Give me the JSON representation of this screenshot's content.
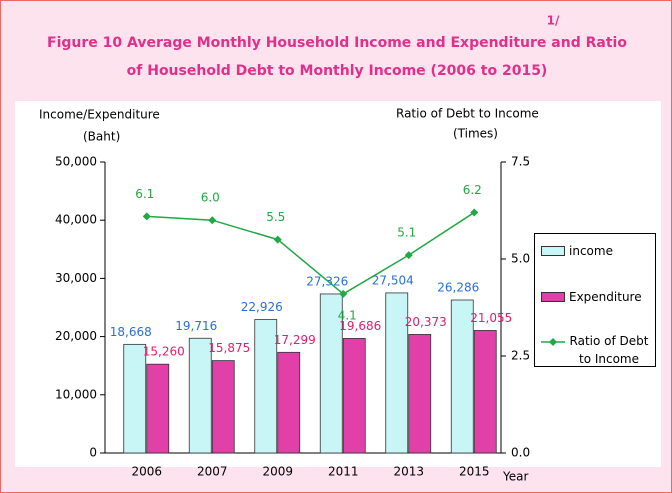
{
  "chart_data": {
    "type": "bar",
    "title": "Figure   10   Average Monthly Household Income and Expenditure and Ratio",
    "subtitle": "of  Household Debt to Monthly Income (2006 to 2015)",
    "title_note": "1/",
    "y_label": "Income/Expenditure",
    "y_unit": "(Baht)",
    "y2_label": "Ratio of Debt to Income",
    "y2_unit": "(Times)",
    "x_label": "Year",
    "categories": [
      "2006",
      "2007",
      "2009",
      "2011",
      "2013",
      "2015"
    ],
    "series": [
      {
        "name": "income",
        "type": "bar",
        "color": "#c8f6f6",
        "label_color": "#2a6fd8",
        "values": [
          18668,
          19716,
          22926,
          27326,
          27504,
          26286
        ],
        "value_labels": [
          "18,668",
          "19,716",
          "22,926",
          "27,326",
          "27,504",
          "26,286"
        ]
      },
      {
        "name": "Expenditure",
        "type": "bar",
        "color": "#e040a8",
        "label_color": "#e0206a",
        "values": [
          15260,
          15875,
          17299,
          19686,
          20373,
          21055
        ],
        "value_labels": [
          "15,260",
          "15,875",
          "17,299",
          "19,686",
          "20,373",
          "21,055"
        ]
      },
      {
        "name": "Ratio of Debt to Income",
        "type": "line",
        "axis": "y2",
        "color": "#22a845",
        "label_color": "#22a845",
        "values": [
          6.1,
          6.0,
          5.5,
          4.1,
          5.1,
          6.2
        ],
        "value_labels": [
          "6.1",
          "6.0",
          "5.5",
          "4.1",
          "5.1",
          "6.2"
        ]
      }
    ],
    "ylim": [
      0,
      50000
    ],
    "yticks": [
      0,
      {
        "value": 10000,
        "label": "10,000"
      },
      {
        "value": 20000,
        "label": "20,000"
      },
      {
        "value": 30000,
        "label": "30,000"
      },
      {
        "value": 40000,
        "label": "40,000"
      },
      {
        "value": 50000,
        "label": "50,000"
      }
    ],
    "y2lim": [
      0,
      7.5
    ],
    "y2ticks": [
      {
        "value": 0,
        "label": "0.0"
      },
      2.5,
      {
        "value": 5,
        "label": "5.0"
      },
      {
        "value": 7.5,
        "label": "7.5"
      }
    ],
    "legend": "right"
  }
}
